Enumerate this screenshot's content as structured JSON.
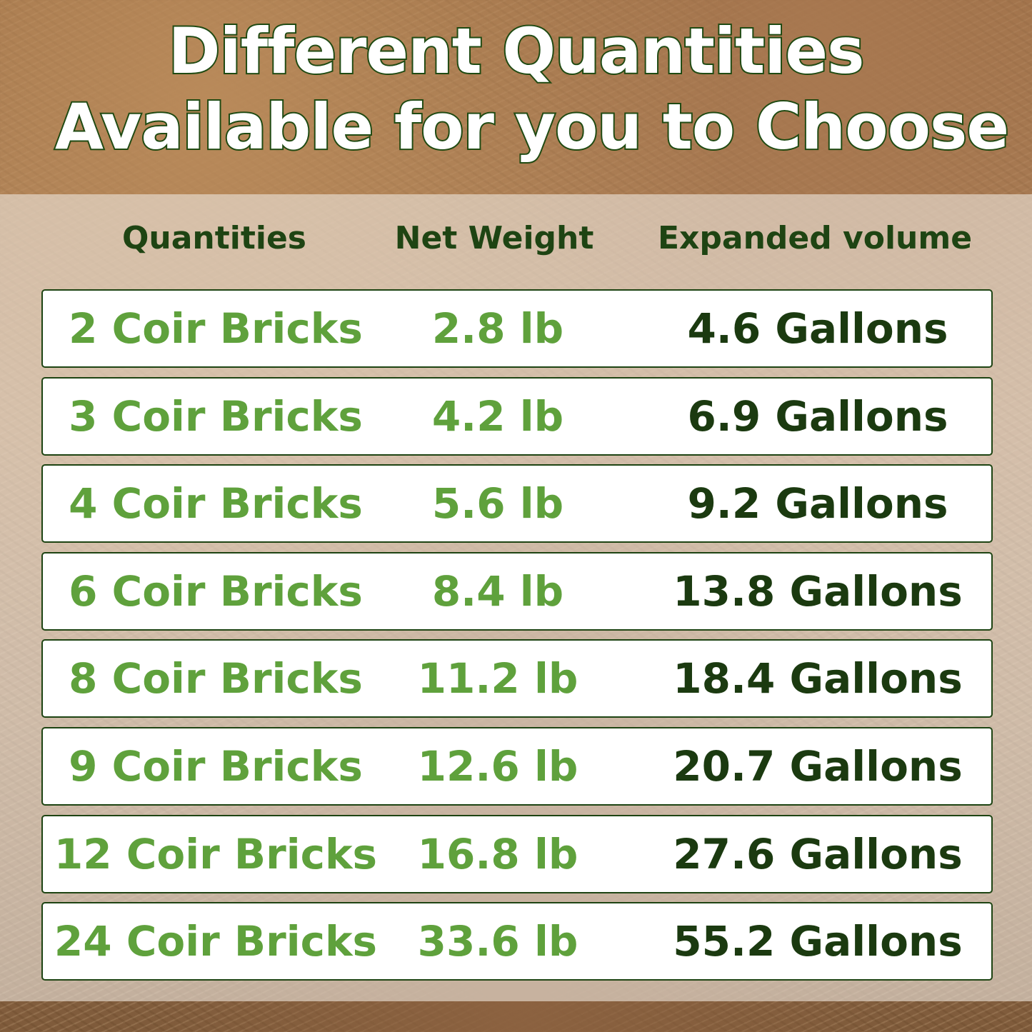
{
  "title": {
    "line1": "Different Quantities",
    "line2": "Available for you to Choose"
  },
  "table": {
    "headers": [
      "Quantities",
      "Net Weight",
      "Expanded volume"
    ],
    "rows": [
      [
        "2 Coir Bricks",
        "2.8 lb",
        "4.6 Gallons"
      ],
      [
        "3 Coir Bricks",
        "4.2 lb",
        "6.9 Gallons"
      ],
      [
        "4 Coir Bricks",
        "5.6 lb",
        "9.2 Gallons"
      ],
      [
        "6 Coir Bricks",
        "8.4 lb",
        "13.8 Gallons"
      ],
      [
        "8 Coir Bricks",
        "11.2 lb",
        "18.4 Gallons"
      ],
      [
        "9 Coir Bricks",
        "12.6 lb",
        "20.7 Gallons"
      ],
      [
        "12 Coir Bricks",
        "16.8 lb",
        "27.6 Gallons"
      ],
      [
        "24 Coir Bricks",
        "33.6 lb",
        "55.2 Gallons"
      ]
    ]
  },
  "colors": {
    "title_outline": "#1f4a12",
    "header": "#1e4413",
    "quantity_weight": "#5fa13c",
    "volume": "#1b3a10"
  }
}
